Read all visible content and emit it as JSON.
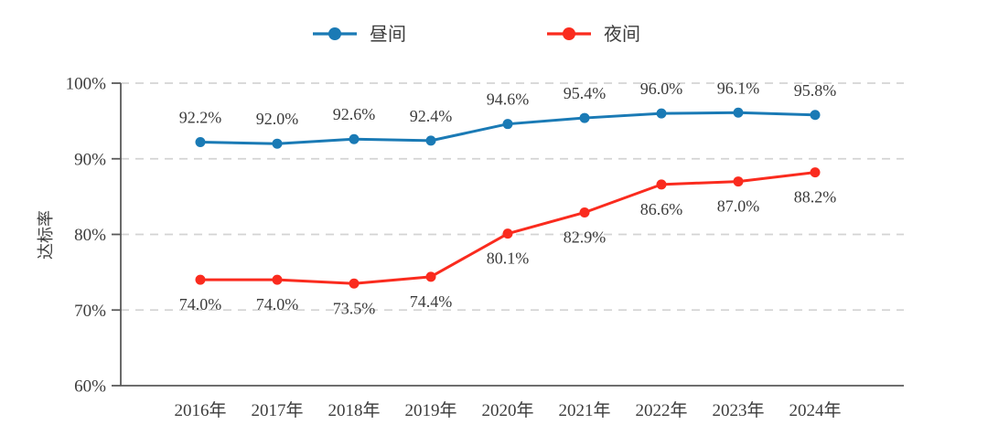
{
  "chart_data": {
    "type": "line",
    "title": "",
    "xlabel": "",
    "ylabel": "达标率",
    "ylim": [
      60,
      100
    ],
    "grid": "horizontal-dashed",
    "legend_position": "top-center",
    "categories": [
      "2016年",
      "2017年",
      "2018年",
      "2019年",
      "2020年",
      "2021年",
      "2022年",
      "2023年",
      "2024年"
    ],
    "yticks": [
      {
        "value": 100,
        "label": "100%"
      },
      {
        "value": 90,
        "label": "90%"
      },
      {
        "value": 80,
        "label": "80%"
      },
      {
        "value": 70,
        "label": "70%"
      },
      {
        "value": 60,
        "label": "60%"
      }
    ],
    "series": [
      {
        "name": "昼间",
        "color": "#1a7ab5",
        "marker": "circle",
        "label_position": "above",
        "values": [
          92.2,
          92.0,
          92.6,
          92.4,
          94.6,
          95.4,
          96.0,
          96.1,
          95.8
        ],
        "labels": [
          "92.2%",
          "92.0%",
          "92.6%",
          "92.4%",
          "94.6%",
          "95.4%",
          "96.0%",
          "96.1%",
          "95.8%"
        ]
      },
      {
        "name": "夜间",
        "color": "#fa2b1e",
        "marker": "circle",
        "label_position": "below",
        "values": [
          74.0,
          74.0,
          73.5,
          74.4,
          80.1,
          82.9,
          86.6,
          87.0,
          88.2
        ],
        "labels": [
          "74.0%",
          "74.0%",
          "73.5%",
          "74.4%",
          "80.1%",
          "82.9%",
          "86.6%",
          "87.0%",
          "88.2%"
        ]
      }
    ]
  },
  "colors": {
    "background": "#ffffff",
    "text": "#3c3c3c",
    "axis": "#595959",
    "grid": "#d4d4d4"
  }
}
